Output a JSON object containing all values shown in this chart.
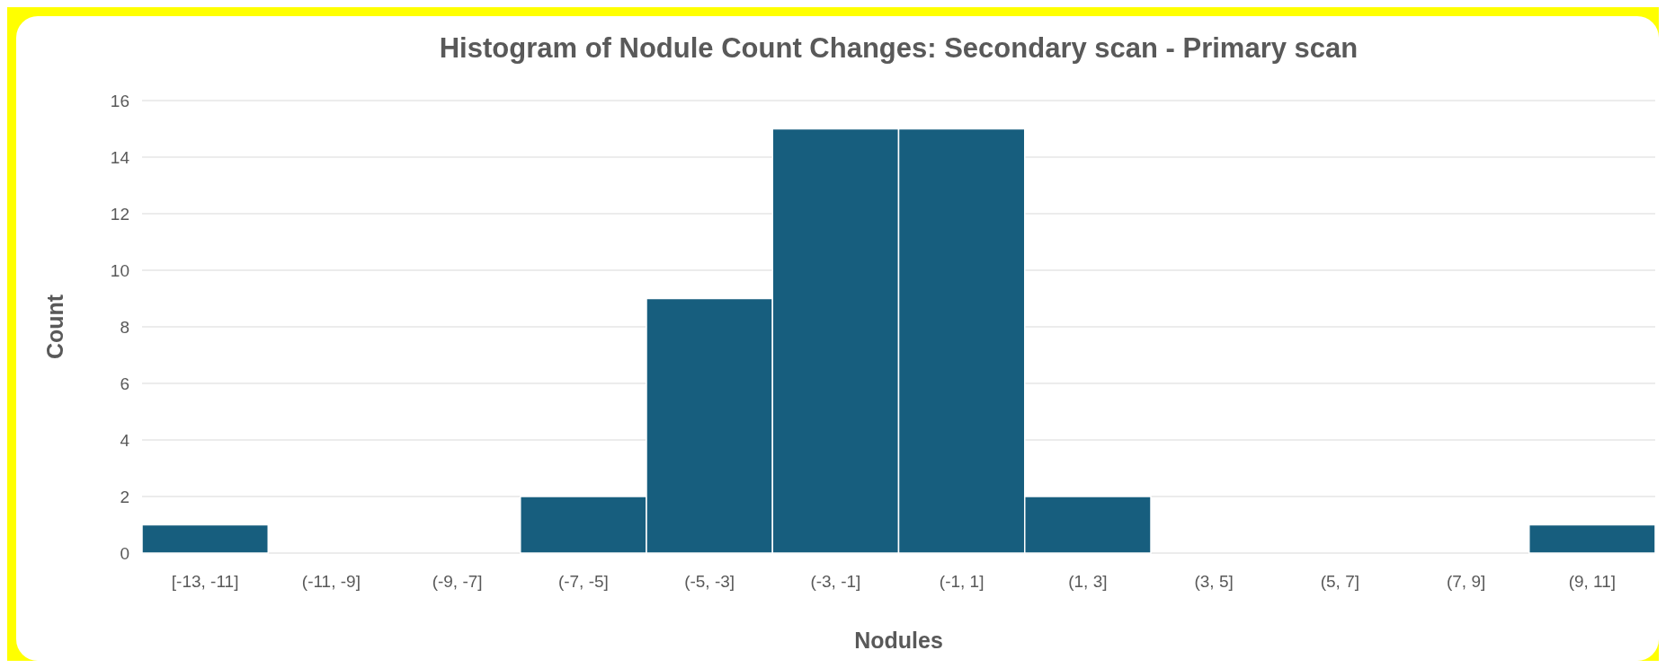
{
  "chart_data": {
    "type": "bar",
    "title": "Histogram of Nodule Count Changes: Secondary scan - Primary scan",
    "xlabel": "Nodules",
    "ylabel": "Count",
    "categories": [
      "[-13, -11]",
      "(-11, -9]",
      "(-9, -7]",
      "(-7, -5]",
      "(-5, -3]",
      "(-3, -1]",
      "(-1, 1]",
      "(1, 3]",
      "(3, 5]",
      "(5, 7]",
      "(7, 9]",
      "(9, 11]"
    ],
    "values": [
      1,
      0,
      0,
      2,
      9,
      15,
      15,
      2,
      0,
      0,
      0,
      1
    ],
    "color": "#175e7e",
    "ylim": [
      0,
      16
    ],
    "yticks": [
      0,
      2,
      4,
      6,
      8,
      10,
      12,
      14,
      16
    ],
    "grid": "y"
  }
}
